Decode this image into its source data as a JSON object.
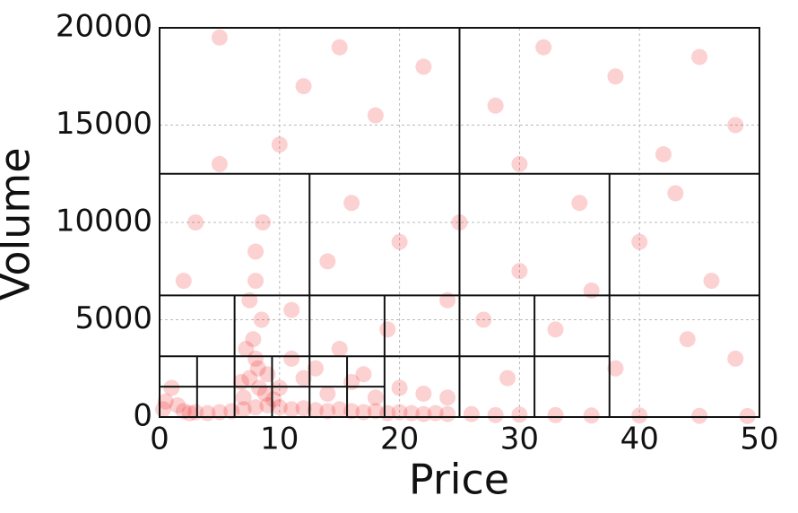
{
  "chart_data": {
    "type": "scatter",
    "x_label": "Price",
    "y_label": "Volume",
    "xlim": [
      0,
      50
    ],
    "ylim": [
      0,
      20000
    ],
    "xticks": [
      0,
      10,
      20,
      30,
      40,
      50
    ],
    "yticks": [
      0,
      5000,
      10000,
      15000,
      20000
    ],
    "grid": true,
    "color": "#ee0000",
    "alpha": 0.18,
    "x": [
      0.5,
      1,
      0.3,
      1.5,
      2,
      2.5,
      3,
      4,
      5,
      6,
      7,
      8,
      9,
      10,
      11,
      12,
      13,
      14,
      15,
      16,
      17,
      18,
      19,
      20,
      21,
      22,
      23,
      24,
      26,
      28,
      30,
      33,
      36,
      40,
      45,
      49,
      7,
      7.5,
      8,
      8.2,
      7.8,
      8.5,
      7.5,
      8,
      8.3,
      9,
      7.2,
      8.8,
      9.5,
      6.8,
      8,
      8.6,
      10,
      12,
      14,
      16,
      18,
      11,
      13,
      15,
      17,
      20,
      22,
      24,
      10,
      12,
      15,
      5,
      18,
      22,
      28,
      32,
      38,
      45,
      48,
      30,
      42,
      35,
      25,
      20,
      14,
      40,
      46,
      30,
      27,
      33,
      44,
      38,
      29,
      48,
      3,
      5,
      2,
      16,
      24,
      36,
      43,
      11,
      19
    ],
    "y": [
      800,
      1500,
      400,
      600,
      300,
      200,
      250,
      200,
      250,
      300,
      400,
      500,
      600,
      500,
      400,
      450,
      350,
      300,
      400,
      300,
      250,
      300,
      200,
      250,
      200,
      150,
      200,
      150,
      150,
      100,
      120,
      100,
      80,
      80,
      60,
      50,
      1000,
      2000,
      3000,
      2500,
      4000,
      5000,
      6000,
      7000,
      1500,
      2200,
      3500,
      1200,
      900,
      1800,
      8500,
      10000,
      1500,
      2000,
      1200,
      1800,
      1000,
      3000,
      2500,
      3500,
      2200,
      1500,
      1200,
      1000,
      14000,
      17000,
      19000,
      19500,
      15500,
      18000,
      16000,
      19000,
      17500,
      18500,
      15000,
      13000,
      13500,
      11000,
      10000,
      9000,
      8000,
      9000,
      7000,
      7500,
      5000,
      4500,
      4000,
      2500,
      2000,
      3000,
      10000,
      13000,
      7000,
      11000,
      6000,
      6500,
      11500,
      5500,
      4500
    ],
    "partition_lines": [
      [
        25,
        0,
        25,
        20000
      ],
      [
        0,
        12500,
        50,
        12500
      ],
      [
        12.5,
        6250,
        12.5,
        12500
      ],
      [
        37.5,
        0,
        37.5,
        12500
      ],
      [
        0,
        6250,
        50,
        6250
      ],
      [
        6.25,
        0,
        6.25,
        6250
      ],
      [
        12.5,
        0,
        12.5,
        6250
      ],
      [
        18.75,
        0,
        18.75,
        6250
      ],
      [
        31.25,
        0,
        31.25,
        6250
      ],
      [
        0,
        3125,
        37.5,
        3125
      ],
      [
        0,
        1562.5,
        18.75,
        1562.5
      ],
      [
        3.125,
        0,
        3.125,
        3125
      ],
      [
        9.375,
        0,
        9.375,
        3125
      ],
      [
        15.625,
        0,
        15.625,
        3125
      ]
    ]
  }
}
